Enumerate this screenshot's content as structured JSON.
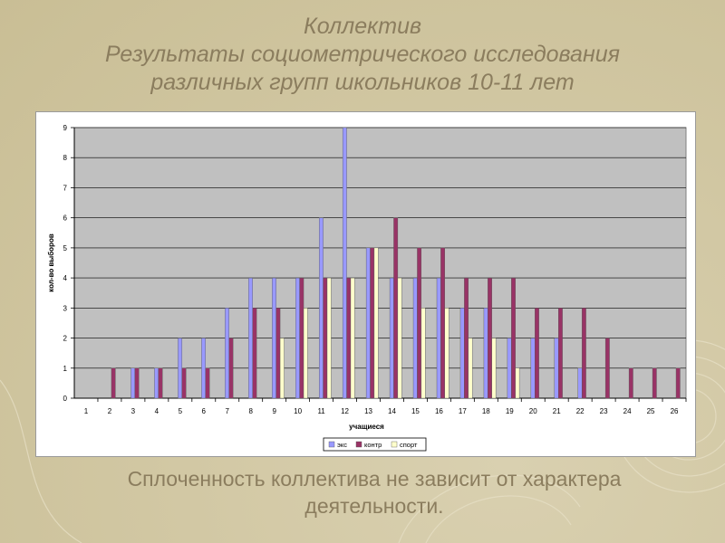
{
  "slide": {
    "title_line1": "Коллектив",
    "title_line2": "Результаты социометрического исследования",
    "title_line3": "различных групп школьников 10-11 лет",
    "caption_line1": "Сплоченность коллектива не зависит от характера",
    "caption_line2": "деятельности."
  },
  "colors": {
    "plot_bg": "#c0c0c0",
    "series": [
      "#9999ff",
      "#993366",
      "#ffffcc"
    ]
  },
  "chart_data": {
    "type": "bar",
    "xlabel": "учащиеся",
    "ylabel": "кол-во выборов",
    "ylim": [
      0,
      9
    ],
    "yticks": [
      0,
      1,
      2,
      3,
      4,
      5,
      6,
      7,
      8,
      9
    ],
    "grid": true,
    "legend": "bottom",
    "categories": [
      "1",
      "2",
      "3",
      "4",
      "5",
      "6",
      "7",
      "8",
      "9",
      "10",
      "11",
      "12",
      "13",
      "14",
      "15",
      "16",
      "17",
      "18",
      "19",
      "20",
      "21",
      "22",
      "23",
      "24",
      "25",
      "26"
    ],
    "series": [
      {
        "name": "экс",
        "values": [
          0,
          0,
          1,
          1,
          2,
          2,
          3,
          4,
          4,
          4,
          6,
          9,
          5,
          4,
          4,
          4,
          3,
          3,
          2,
          2,
          2,
          1,
          0,
          0,
          0,
          0
        ]
      },
      {
        "name": "контр",
        "values": [
          0,
          1,
          1,
          1,
          1,
          1,
          2,
          3,
          3,
          4,
          4,
          4,
          5,
          6,
          5,
          5,
          4,
          4,
          4,
          3,
          3,
          3,
          2,
          1,
          1,
          1
        ]
      },
      {
        "name": "спорт",
        "values": [
          0,
          0,
          0,
          0,
          0,
          0,
          0,
          0,
          2,
          3,
          4,
          4,
          5,
          4,
          3,
          3,
          2,
          2,
          1,
          0,
          0,
          0,
          0,
          0,
          0,
          0
        ]
      }
    ]
  }
}
